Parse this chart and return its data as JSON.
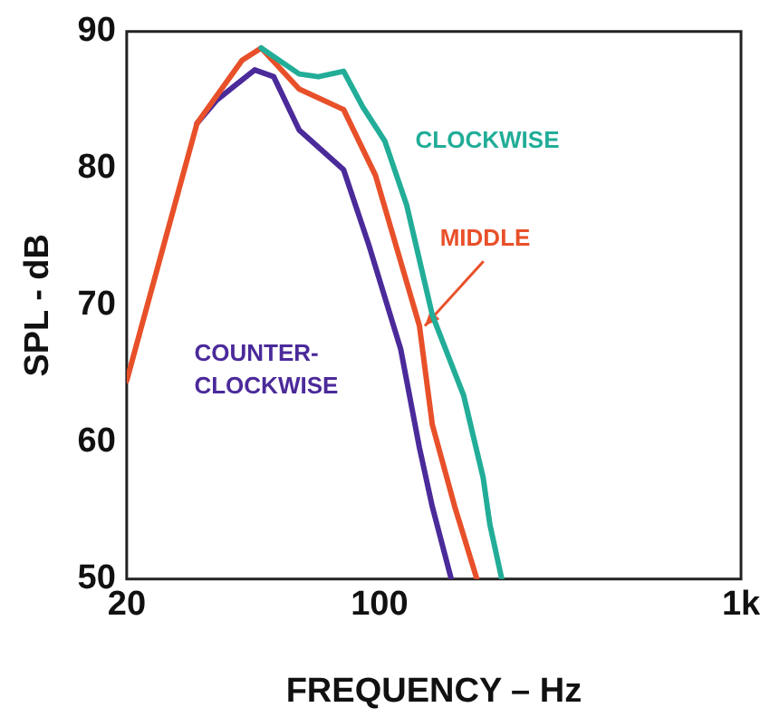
{
  "chart_data": {
    "type": "line",
    "xlabel": "FREQUENCY – Hz",
    "ylabel": "SPL - dB",
    "log": "x",
    "xlim": [
      20,
      1000
    ],
    "xticks": [
      20,
      100,
      {
        "value": 1000,
        "label": "1k"
      }
    ],
    "ylim": [
      50,
      90
    ],
    "yticks": [
      50,
      60,
      70,
      80,
      90
    ],
    "grid": false,
    "legend": false,
    "marker": "none",
    "line_style": "solid",
    "series": [
      {
        "name": "CLOCKWISE",
        "color": "#22ad98",
        "x": [
          47.1,
          60,
          67.8,
          79.6,
          89.9,
          103.5,
          119,
          140,
          171,
          193.6,
          202,
          218
        ],
        "values": [
          88.8,
          86.9,
          86.7,
          87.1,
          84.5,
          82,
          77.3,
          69.3,
          63.4,
          57.4,
          54,
          50
        ]
      },
      {
        "name": "MIDDLE",
        "color": "#e8502a",
        "x": [
          20,
          31.3,
          41.7,
          47.1,
          60,
          79.6,
          97.5,
          129,
          140,
          161.5,
          186
        ],
        "values": [
          64.5,
          83.3,
          87.9,
          88.8,
          85.8,
          84.3,
          79.5,
          68.5,
          61.3,
          55.3,
          50
        ]
      },
      {
        "name": "COUNTER-CLOCKWISE",
        "color": "#4b2a9a",
        "x": [
          31.3,
          35.5,
          45.2,
          51,
          60,
          79.6,
          93.5,
          114.5,
          129,
          140,
          158
        ],
        "values": [
          83.3,
          85,
          87.2,
          86.7,
          82.8,
          79.9,
          74.4,
          66.8,
          59.6,
          55.3,
          50
        ]
      }
    ]
  }
}
